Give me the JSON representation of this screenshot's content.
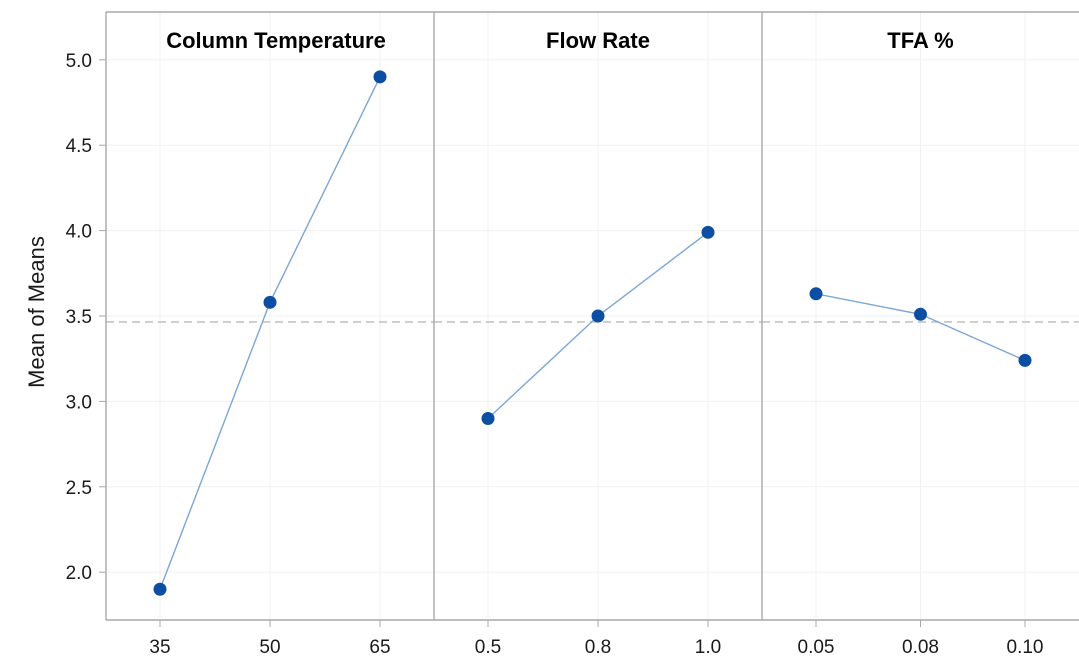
{
  "chart_data": {
    "type": "line",
    "ylabel": "Mean of Means",
    "ylim": [
      1.72,
      5.28
    ],
    "yticks": [
      "2.0",
      "2.5",
      "3.0",
      "3.5",
      "4.0",
      "4.5",
      "5.0"
    ],
    "reference_line": 3.465,
    "grid": true,
    "panels": [
      {
        "title": "Column Temperature",
        "categories": [
          "35",
          "50",
          "65"
        ],
        "values": [
          1.9,
          3.58,
          4.9
        ]
      },
      {
        "title": "Flow Rate",
        "categories": [
          "0.5",
          "0.8",
          "1.0"
        ],
        "values": [
          2.9,
          3.5,
          3.99
        ]
      },
      {
        "title": "TFA %",
        "categories": [
          "0.05",
          "0.08",
          "0.10"
        ],
        "values": [
          3.63,
          3.51,
          3.24
        ]
      }
    ],
    "colors": {
      "line": "#7aa6d8",
      "marker": "#0b4ea2",
      "reference": "#c4c4c4",
      "frame": "#a8a8a8",
      "grid": "#f1f1f1"
    }
  }
}
